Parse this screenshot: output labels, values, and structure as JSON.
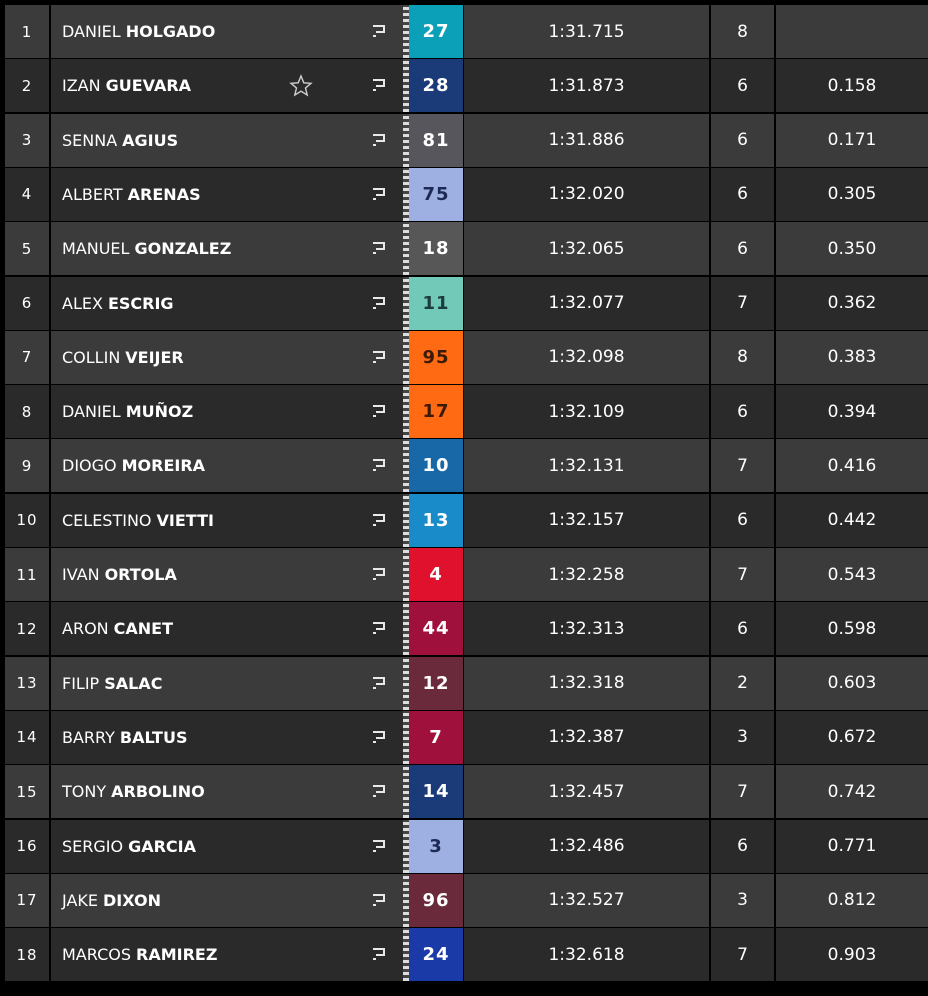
{
  "rows": [
    {
      "pos": 1,
      "first": "DANIEL",
      "last": "HOLGADO",
      "number": 27,
      "color": "#0b9fb8",
      "text_color": "#ffffff",
      "time": "1:31.715",
      "laps": 8
    },
    {
      "pos": 2,
      "first": "IZAN",
      "last": "GUEVARA",
      "starred": true,
      "number": 28,
      "color": "#1b3a78",
      "text_color": "#ffffff",
      "time": "1:31.873",
      "laps": 6,
      "gap": "0.158"
    },
    {
      "pos": 3,
      "first": "SENNA",
      "last": "AGIUS",
      "number": 81,
      "color": "#56565c",
      "text_color": "#ffffff",
      "time": "1:31.886",
      "laps": 6,
      "gap": "0.171"
    },
    {
      "pos": 4,
      "first": "ALBERT",
      "last": "ARENAS",
      "number": 75,
      "color": "#9eafe2",
      "text_color": "#1c2a55",
      "time": "1:32.020",
      "laps": 6,
      "gap": "0.305"
    },
    {
      "pos": 5,
      "first": "MANUEL",
      "last": "GONZALEZ",
      "number": 18,
      "color": "#575757",
      "text_color": "#ffffff",
      "time": "1:32.065",
      "laps": 6,
      "gap": "0.350"
    },
    {
      "pos": 6,
      "first": "ALEX",
      "last": "ESCRIG",
      "number": 11,
      "color": "#72c9b8",
      "text_color": "#1d3b3a",
      "time": "1:32.077",
      "laps": 7,
      "gap": "0.362"
    },
    {
      "pos": 7,
      "first": "COLLIN",
      "last": "VEIJER",
      "number": 95,
      "color": "#ff6a12",
      "text_color": "#3a1a08",
      "time": "1:32.098",
      "laps": 8,
      "gap": "0.383"
    },
    {
      "pos": 8,
      "first": "DANIEL",
      "last": "MUÑOZ",
      "number": 17,
      "color": "#ff6a12",
      "text_color": "#3a1a08",
      "time": "1:32.109",
      "laps": 6,
      "gap": "0.394"
    },
    {
      "pos": 9,
      "first": "DIOGO",
      "last": "MOREIRA",
      "number": 10,
      "color": "#1868a8",
      "text_color": "#ffffff",
      "time": "1:32.131",
      "laps": 7,
      "gap": "0.416"
    },
    {
      "pos": 10,
      "first": "CELESTINO",
      "last": "VIETTI",
      "number": 13,
      "color": "#1a8bc9",
      "text_color": "#ffffff",
      "time": "1:32.157",
      "laps": 6,
      "gap": "0.442"
    },
    {
      "pos": 11,
      "first": "IVAN",
      "last": "ORTOLA",
      "number": 4,
      "color": "#e0112c",
      "text_color": "#ffffff",
      "time": "1:32.258",
      "laps": 7,
      "gap": "0.543"
    },
    {
      "pos": 12,
      "first": "ARON",
      "last": "CANET",
      "number": 44,
      "color": "#a0103c",
      "text_color": "#ffffff",
      "time": "1:32.313",
      "laps": 6,
      "gap": "0.598"
    },
    {
      "pos": 13,
      "first": "FILIP",
      "last": "SALAC",
      "number": 12,
      "color": "#6b2a3c",
      "text_color": "#ffffff",
      "time": "1:32.318",
      "laps": 2,
      "gap": "0.603"
    },
    {
      "pos": 14,
      "first": "BARRY",
      "last": "BALTUS",
      "number": 7,
      "color": "#a0103c",
      "text_color": "#ffffff",
      "time": "1:32.387",
      "laps": 3,
      "gap": "0.672"
    },
    {
      "pos": 15,
      "first": "TONY",
      "last": "ARBOLINO",
      "number": 14,
      "color": "#1b3a78",
      "text_color": "#ffffff",
      "time": "1:32.457",
      "laps": 7,
      "gap": "0.742"
    },
    {
      "pos": 16,
      "first": "SERGIO",
      "last": "GARCIA",
      "number": 3,
      "color": "#9eafe2",
      "text_color": "#1c2a55",
      "time": "1:32.486",
      "laps": 6,
      "gap": "0.771"
    },
    {
      "pos": 17,
      "first": "JAKE",
      "last": "DIXON",
      "number": 96,
      "color": "#6b2a3c",
      "text_color": "#ffffff",
      "time": "1:32.527",
      "laps": 3,
      "gap": "0.812"
    },
    {
      "pos": 18,
      "first": "MARCOS",
      "last": "RAMIREZ",
      "number": 24,
      "color": "#1a3aa8",
      "text_color": "#ffffff",
      "time": "1:32.618",
      "laps": 7,
      "gap": "0.903"
    }
  ]
}
